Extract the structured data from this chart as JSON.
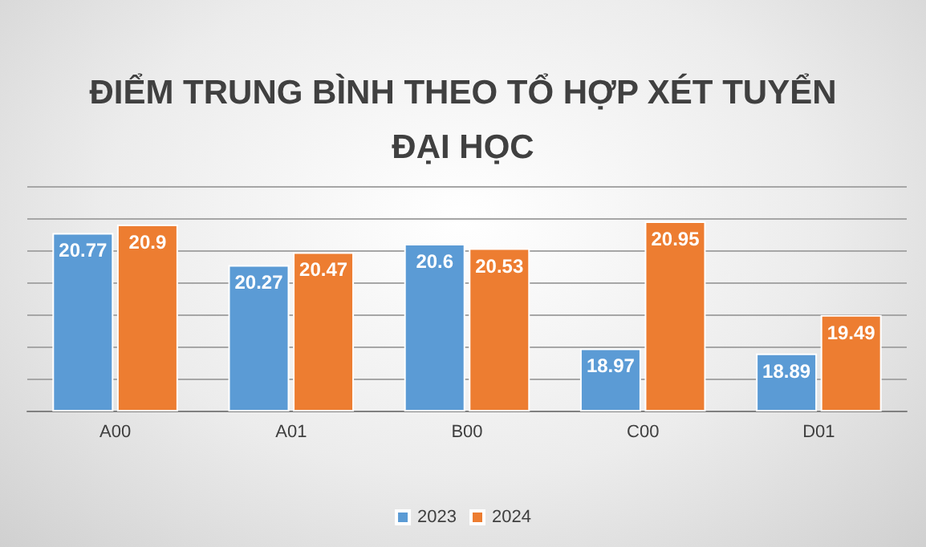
{
  "chart_data": {
    "type": "bar",
    "title": "ĐIỂM TRUNG BÌNH THEO TỔ HỢP XÉT TUYỂN\nĐẠI HỌC",
    "categories": [
      "A00",
      "A01",
      "B00",
      "C00",
      "D01"
    ],
    "series": [
      {
        "name": "2023",
        "color": "#5b9bd5",
        "values": [
          20.77,
          20.27,
          20.6,
          18.97,
          18.89
        ]
      },
      {
        "name": "2024",
        "color": "#ed7d31",
        "values": [
          20.9,
          20.47,
          20.53,
          20.95,
          19.49
        ]
      }
    ],
    "ylim": [
      18,
      21.5
    ],
    "yticks": [
      18,
      18.5,
      19,
      19.5,
      20,
      20.5,
      21,
      21.5
    ],
    "tick_labels": "x",
    "grid": "y",
    "legend": "bottom",
    "data_labels": true
  }
}
